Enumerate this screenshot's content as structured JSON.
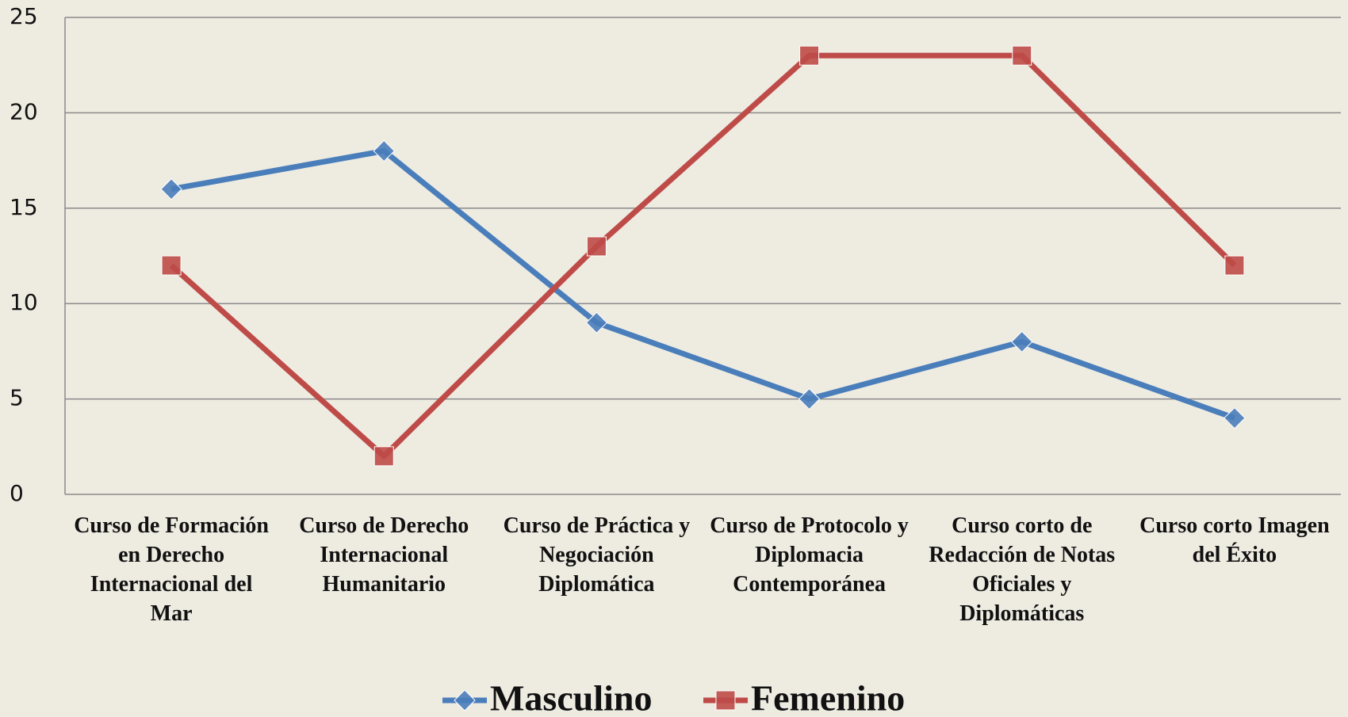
{
  "chart_data": {
    "type": "line",
    "categories": [
      "Curso de Formación en Derecho Internacional del Mar",
      "Curso de Derecho Internacional Humanitario",
      "Curso de Práctica y Negociación Diplomática",
      "Curso de Protocolo y Diplomacia Contemporánea",
      "Curso corto de Redacción de Notas Oficiales y Diplomáticas",
      "Curso corto Imagen del Éxito"
    ],
    "series": [
      {
        "name": "Masculino",
        "color": "#4a7ebb",
        "marker": "diamond",
        "values": [
          16,
          18,
          9,
          5,
          8,
          4
        ]
      },
      {
        "name": "Femenino",
        "color": "#be4b48",
        "marker": "square",
        "values": [
          12,
          2,
          13,
          23,
          23,
          12
        ]
      }
    ],
    "ylim": [
      0,
      25
    ],
    "yticks": [
      0,
      5,
      10,
      15,
      20,
      25
    ],
    "grid": true,
    "legend": "bottom"
  }
}
